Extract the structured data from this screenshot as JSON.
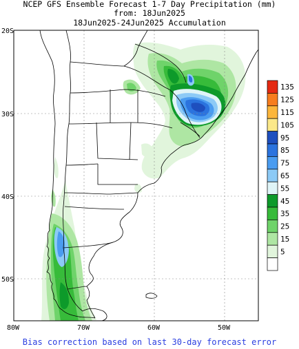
{
  "title": {
    "line1": "NCEP GFS Ensemble Forecast 1-7 Day Precipitation (mm)",
    "line2": "from: 18Jun2025",
    "line3": "18Jun2025-24Jun2025 Accumulation"
  },
  "footer": "Bias correction based on last 30-day forecast error",
  "axes": {
    "lat_labels": [
      "20S",
      "30S",
      "40S",
      "50S"
    ],
    "lon_labels": [
      "80W",
      "70W",
      "60W",
      "50W"
    ]
  },
  "legend": {
    "entries": [
      {
        "label": "135",
        "color": "#e52a12"
      },
      {
        "label": "125",
        "color": "#f77d1e"
      },
      {
        "label": "115",
        "color": "#fcb63b"
      },
      {
        "label": "105",
        "color": "#fbe889"
      },
      {
        "label": "95",
        "color": "#1e4fbe"
      },
      {
        "label": "85",
        "color": "#2b73de"
      },
      {
        "label": "75",
        "color": "#4a9cf0"
      },
      {
        "label": "65",
        "color": "#8ccaf6"
      },
      {
        "label": "55",
        "color": "#dff4f7"
      },
      {
        "label": "45",
        "color": "#0d9a2a"
      },
      {
        "label": "35",
        "color": "#37bb3a"
      },
      {
        "label": "25",
        "color": "#6fd36a"
      },
      {
        "label": "15",
        "color": "#aee6a3"
      },
      {
        "label": "5",
        "color": "#e1f5dc"
      },
      {
        "label": "",
        "color": "#ffffff"
      }
    ]
  }
}
